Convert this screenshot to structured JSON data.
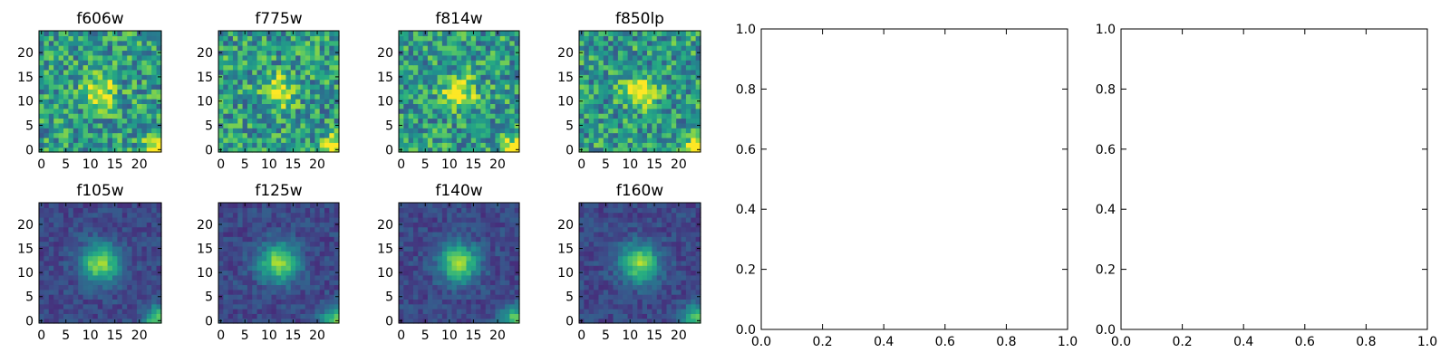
{
  "chart_data": [
    {
      "type": "heatmap",
      "title": "f606w",
      "xticks": [
        "0",
        "5",
        "10",
        "15",
        "20"
      ],
      "yticks": [
        "0",
        "5",
        "10",
        "15",
        "20"
      ],
      "xlim": [
        -0.5,
        24.5
      ],
      "ylim": [
        -0.5,
        24.5
      ],
      "colormap": "viridis"
    },
    {
      "type": "heatmap",
      "title": "f775w",
      "xticks": [
        "0",
        "5",
        "10",
        "15",
        "20"
      ],
      "yticks": [
        "0",
        "5",
        "10",
        "15",
        "20"
      ],
      "xlim": [
        -0.5,
        24.5
      ],
      "ylim": [
        -0.5,
        24.5
      ],
      "colormap": "viridis"
    },
    {
      "type": "heatmap",
      "title": "f814w",
      "xticks": [
        "0",
        "5",
        "10",
        "15",
        "20"
      ],
      "yticks": [
        "0",
        "5",
        "10",
        "15",
        "20"
      ],
      "xlim": [
        -0.5,
        24.5
      ],
      "ylim": [
        -0.5,
        24.5
      ],
      "colormap": "viridis"
    },
    {
      "type": "heatmap",
      "title": "f850lp",
      "xticks": [
        "0",
        "5",
        "10",
        "15",
        "20"
      ],
      "yticks": [
        "0",
        "5",
        "10",
        "15",
        "20"
      ],
      "xlim": [
        -0.5,
        24.5
      ],
      "ylim": [
        -0.5,
        24.5
      ],
      "colormap": "viridis"
    },
    {
      "type": "heatmap",
      "title": "f105w",
      "xticks": [
        "0",
        "5",
        "10",
        "15",
        "20"
      ],
      "yticks": [
        "0",
        "5",
        "10",
        "15",
        "20"
      ],
      "xlim": [
        -0.5,
        24.5
      ],
      "ylim": [
        -0.5,
        24.5
      ],
      "colormap": "viridis"
    },
    {
      "type": "heatmap",
      "title": "f125w",
      "xticks": [
        "0",
        "5",
        "10",
        "15",
        "20"
      ],
      "yticks": [
        "0",
        "5",
        "10",
        "15",
        "20"
      ],
      "xlim": [
        -0.5,
        24.5
      ],
      "ylim": [
        -0.5,
        24.5
      ],
      "colormap": "viridis"
    },
    {
      "type": "heatmap",
      "title": "f140w",
      "xticks": [
        "0",
        "5",
        "10",
        "15",
        "20"
      ],
      "yticks": [
        "0",
        "5",
        "10",
        "15",
        "20"
      ],
      "xlim": [
        -0.5,
        24.5
      ],
      "ylim": [
        -0.5,
        24.5
      ],
      "colormap": "viridis"
    },
    {
      "type": "heatmap",
      "title": "f160w",
      "xticks": [
        "0",
        "5",
        "10",
        "15",
        "20"
      ],
      "yticks": [
        "0",
        "5",
        "10",
        "15",
        "20"
      ],
      "xlim": [
        -0.5,
        24.5
      ],
      "ylim": [
        -0.5,
        24.5
      ],
      "colormap": "viridis"
    },
    {
      "type": "line",
      "title": "",
      "series": [],
      "xticks": [
        "0.0",
        "0.2",
        "0.4",
        "0.6",
        "0.8",
        "1.0"
      ],
      "yticks": [
        "0.0",
        "0.2",
        "0.4",
        "0.6",
        "0.8",
        "1.0"
      ],
      "xlim": [
        0,
        1
      ],
      "ylim": [
        0,
        1
      ]
    },
    {
      "type": "line",
      "title": "",
      "series": [],
      "xticks": [
        "0.0",
        "0.2",
        "0.4",
        "0.6",
        "0.8",
        "1.0"
      ],
      "yticks": [
        "0.0",
        "0.2",
        "0.4",
        "0.6",
        "0.8",
        "1.0"
      ],
      "xlim": [
        0,
        1
      ],
      "ylim": [
        0,
        1
      ]
    }
  ]
}
